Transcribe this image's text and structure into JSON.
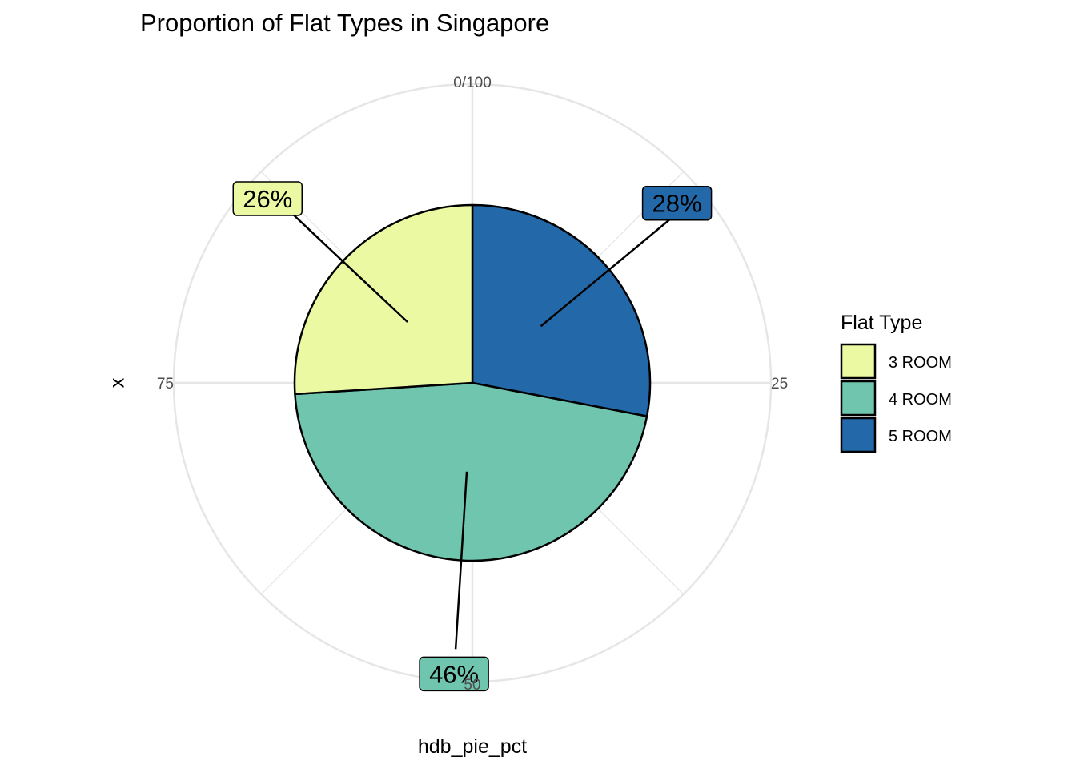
{
  "chart_data": {
    "type": "pie",
    "title": "Proportion of Flat Types in Singapore",
    "xlabel": "hdb_pie_pct",
    "ylabel": "x",
    "theta_ticks": [
      {
        "value": 0,
        "label": "0/100"
      },
      {
        "value": 25,
        "label": "25"
      },
      {
        "value": 50,
        "label": "50"
      },
      {
        "value": 75,
        "label": "75"
      }
    ],
    "slices": [
      {
        "name": "5 ROOM",
        "value": 28,
        "label": "28%",
        "color": "#2369aa"
      },
      {
        "name": "4 ROOM",
        "value": 46,
        "label": "46%",
        "color": "#70c5ae"
      },
      {
        "name": "3 ROOM",
        "value": 26,
        "label": "26%",
        "color": "#eaf9a2"
      }
    ],
    "legend": {
      "title": "Flat Type",
      "placement": "right",
      "items": [
        {
          "label": "3 ROOM",
          "color": "#eaf9a2"
        },
        {
          "label": "4 ROOM",
          "color": "#70c5ae"
        },
        {
          "label": "5 ROOM",
          "color": "#2369aa"
        }
      ]
    },
    "grid": true
  }
}
